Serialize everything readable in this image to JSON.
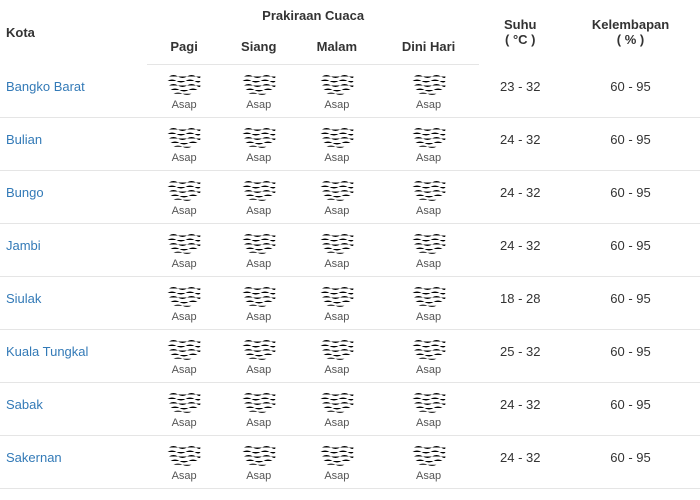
{
  "headers": {
    "city": "Kota",
    "forecast": "Prakiraan Cuaca",
    "temp": "Suhu",
    "temp_unit": "( °C )",
    "humidity": "Kelembapan",
    "humidity_unit": "( % )",
    "periods": [
      "Pagi",
      "Siang",
      "Malam",
      "Dini Hari"
    ]
  },
  "weather_label": "Asap",
  "rows": [
    {
      "city": "Bangko Barat",
      "temp": "23 - 32",
      "humidity": "60 - 95"
    },
    {
      "city": "Bulian",
      "temp": "24 - 32",
      "humidity": "60 - 95"
    },
    {
      "city": "Bungo",
      "temp": "24 - 32",
      "humidity": "60 - 95"
    },
    {
      "city": "Jambi",
      "temp": "24 - 32",
      "humidity": "60 - 95"
    },
    {
      "city": "Siulak",
      "temp": "18 - 28",
      "humidity": "60 - 95"
    },
    {
      "city": "Kuala Tungkal",
      "temp": "25 - 32",
      "humidity": "60 - 95"
    },
    {
      "city": "Sabak",
      "temp": "24 - 32",
      "humidity": "60 - 95"
    },
    {
      "city": "Sakernan",
      "temp": "24 - 32",
      "humidity": "60 - 95"
    }
  ]
}
